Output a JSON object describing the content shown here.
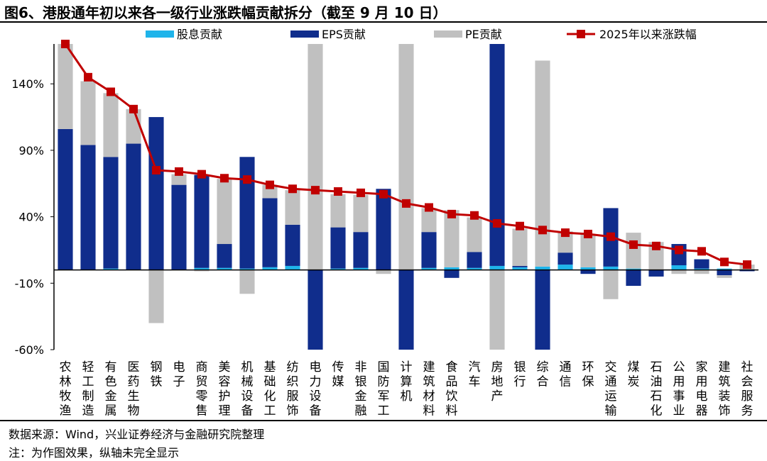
{
  "title": "图6、港股通年初以来各一级行业涨跌幅贡献拆分（截至 9 月 10 日）",
  "source": "数据来源：Wind，兴业证券经济与金融研究院整理",
  "footnote": "注：为作图效果，纵轴未完全显示",
  "colors": {
    "dividend": "#1fb4ea",
    "eps": "#102d8c",
    "pe": "#c0c0c0",
    "total": "#c00000"
  },
  "chart_data": {
    "type": "bar",
    "stacked": true,
    "ylim": [
      -60,
      170
    ],
    "yticks": [
      140,
      90,
      40,
      -10,
      -60
    ],
    "ytick_labels": [
      "140%",
      "90%",
      "40%",
      "-10%",
      "-60%"
    ],
    "legend_position": "top",
    "categories": [
      "农林牧渔",
      "轻工制造",
      "有色金属",
      "医药生物",
      "钢铁",
      "电子",
      "商贸零售",
      "美容护理",
      "机械设备",
      "基础化工",
      "纺织服饰",
      "电力设备",
      "传媒",
      "非银金融",
      "国防军工",
      "计算机",
      "建筑材料",
      "食品饮料",
      "汽车",
      "房地产",
      "银行",
      "综合",
      "通信",
      "环保",
      "交通运输",
      "煤炭",
      "石油石化",
      "公用事业",
      "家用电器",
      "建筑装饰",
      "社会服务"
    ],
    "series": [
      {
        "name": "股息贡献",
        "key": "dividend",
        "values": [
          0,
          0,
          1,
          0,
          0,
          0,
          1.5,
          1.5,
          1,
          2,
          3,
          0,
          1,
          1.5,
          0,
          0,
          1.5,
          2,
          1.5,
          3,
          2,
          2.5,
          4,
          2,
          2.5,
          1,
          0,
          3.5,
          1,
          1,
          0
        ]
      },
      {
        "name": "EPS贡献",
        "key": "eps",
        "values": [
          106,
          94,
          84,
          95,
          115,
          64,
          70,
          18,
          84,
          52,
          31,
          -62,
          31,
          27,
          61,
          -62,
          27,
          -6,
          12,
          170,
          1,
          -62,
          9,
          -3,
          44,
          -12,
          -5,
          16,
          7,
          -4,
          -1
        ]
      },
      {
        "name": "PE贡献",
        "key": "pe",
        "values": [
          64,
          48,
          48,
          26,
          -40,
          8,
          -1,
          49,
          -18,
          10,
          26,
          172,
          25,
          28,
          -3,
          172,
          18,
          43,
          26,
          -62,
          28,
          155,
          16,
          25,
          -22,
          27,
          21,
          -3,
          -3,
          -2,
          4
        ]
      },
      {
        "name": "2025年以来涨跌幅",
        "key": "total",
        "type": "line",
        "values": [
          170,
          145,
          134,
          121,
          75,
          74,
          72,
          69,
          68,
          64,
          61,
          60,
          59,
          58,
          57,
          50,
          47,
          42,
          41,
          35,
          33,
          30,
          28,
          27,
          25,
          19,
          18,
          15,
          14,
          6,
          4
        ]
      }
    ]
  }
}
